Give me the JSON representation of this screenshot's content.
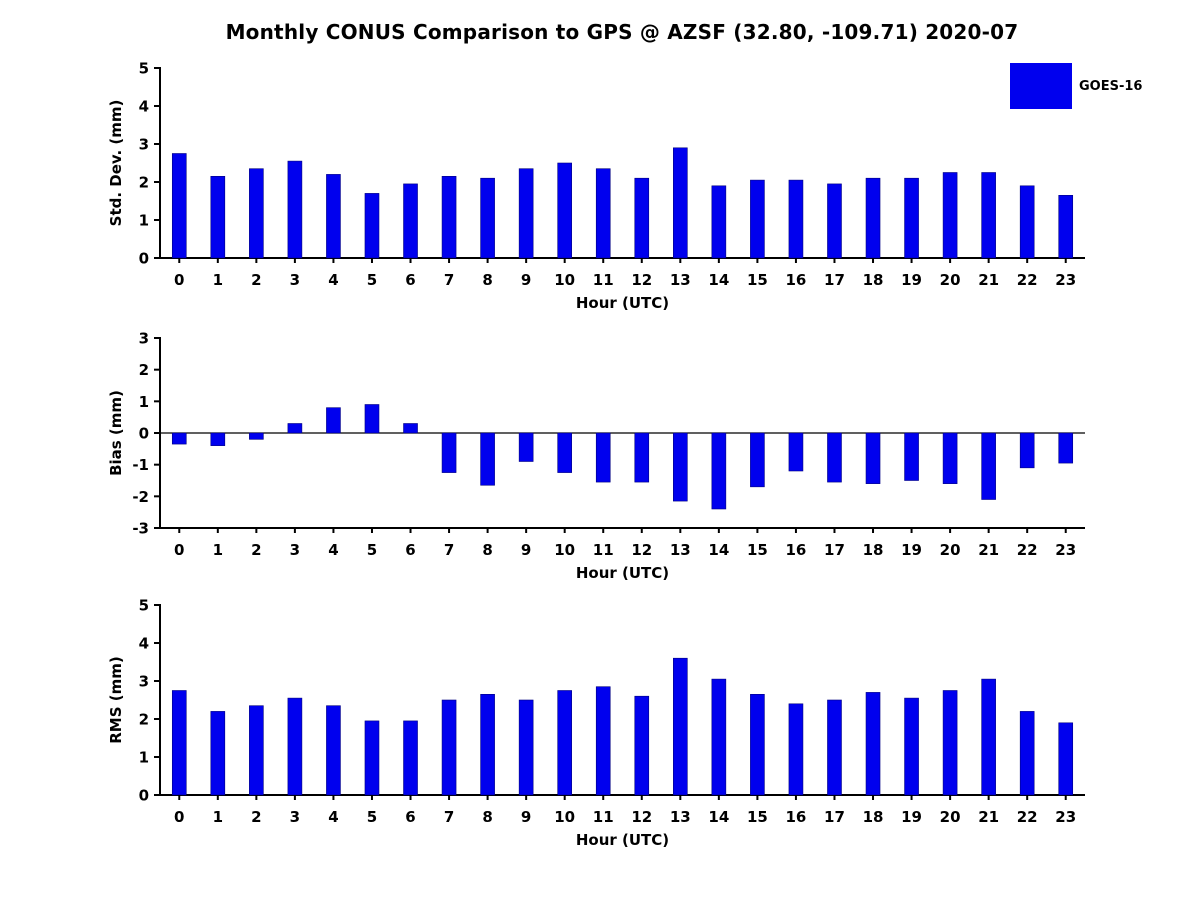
{
  "chart_data": {
    "type": "bar",
    "title": "Monthly CONUS Comparison to GPS @ AZSF (32.80, -109.71) 2020-07",
    "legend": {
      "label": "GOES-16",
      "color": "#0000ee"
    },
    "bar_color": "#0000ee",
    "xlabel": "Hour (UTC)",
    "categories": [
      0,
      1,
      2,
      3,
      4,
      5,
      6,
      7,
      8,
      9,
      10,
      11,
      12,
      13,
      14,
      15,
      16,
      17,
      18,
      19,
      20,
      21,
      22,
      23
    ],
    "panels": [
      {
        "name": "std_dev",
        "ylabel": "Std. Dev. (mm)",
        "ylim": [
          0,
          5
        ],
        "yticks": [
          0,
          1,
          2,
          3,
          4,
          5
        ],
        "values": [
          2.75,
          2.15,
          2.35,
          2.55,
          2.2,
          1.7,
          1.95,
          2.15,
          2.1,
          2.35,
          2.5,
          2.35,
          2.1,
          2.9,
          1.9,
          2.05,
          2.05,
          1.95,
          2.1,
          2.1,
          2.25,
          2.25,
          1.9,
          1.65
        ]
      },
      {
        "name": "bias",
        "ylabel": "Bias (mm)",
        "ylim": [
          -3,
          3
        ],
        "yticks": [
          -3,
          -2,
          -1,
          0,
          1,
          2,
          3
        ],
        "values": [
          -0.35,
          -0.4,
          -0.2,
          0.3,
          0.8,
          0.9,
          0.3,
          -1.25,
          -1.65,
          -0.9,
          -1.25,
          -1.55,
          -1.55,
          -2.15,
          -2.4,
          -1.7,
          -1.2,
          -1.55,
          -1.6,
          -1.5,
          -1.6,
          -2.1,
          -1.1,
          -0.95
        ]
      },
      {
        "name": "rms",
        "ylabel": "RMS (mm)",
        "ylim": [
          0,
          5
        ],
        "yticks": [
          0,
          1,
          2,
          3,
          4,
          5
        ],
        "values": [
          2.75,
          2.2,
          2.35,
          2.55,
          2.35,
          1.95,
          1.95,
          2.5,
          2.65,
          2.5,
          2.75,
          2.85,
          2.6,
          3.6,
          3.05,
          2.65,
          2.4,
          2.5,
          2.7,
          2.55,
          2.75,
          3.05,
          2.2,
          1.9
        ]
      }
    ]
  }
}
